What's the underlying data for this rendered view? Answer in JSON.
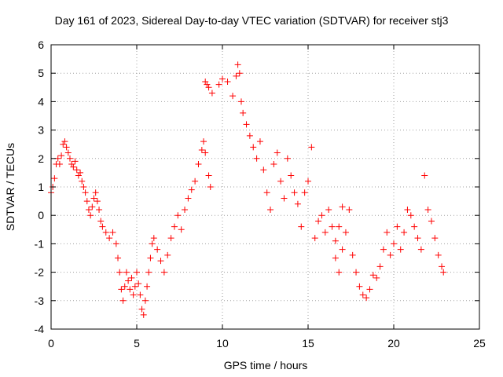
{
  "chart_data": {
    "type": "scatter",
    "title": "Day 161 of 2023, Sidereal Day-to-day VTEC variation (SDTVAR) for receiver stj3",
    "xlabel": "GPS time / hours",
    "ylabel": "SDTVAR / TECUs",
    "xlim": [
      0,
      25
    ],
    "ylim": [
      -4,
      6
    ],
    "xticks": [
      0,
      5,
      10,
      15,
      20,
      25
    ],
    "yticks": [
      -4,
      -3,
      -2,
      -1,
      0,
      1,
      2,
      3,
      4,
      5,
      6
    ],
    "xtick_labels": [
      "0",
      "5",
      "10",
      "15",
      "20",
      "25"
    ],
    "ytick_labels": [
      "-4",
      "-3",
      "-2",
      "-1",
      "0",
      "1",
      "2",
      "3",
      "4",
      "5",
      "6"
    ],
    "grid": true,
    "marker": "+",
    "colors": {
      "series": "#ff0000",
      "grid": "#a0a0a0",
      "axis": "#000000"
    },
    "series": [
      {
        "name": "SDTVAR",
        "points": [
          [
            0.0,
            0.8
          ],
          [
            0.1,
            1.0
          ],
          [
            0.2,
            1.3
          ],
          [
            0.3,
            1.8
          ],
          [
            0.4,
            2.0
          ],
          [
            0.5,
            1.8
          ],
          [
            0.6,
            2.1
          ],
          [
            0.7,
            2.5
          ],
          [
            0.8,
            2.6
          ],
          [
            0.9,
            2.4
          ],
          [
            1.0,
            2.2
          ],
          [
            1.1,
            2.0
          ],
          [
            1.2,
            1.8
          ],
          [
            1.3,
            1.7
          ],
          [
            1.4,
            1.9
          ],
          [
            1.5,
            1.6
          ],
          [
            1.6,
            1.4
          ],
          [
            1.7,
            1.5
          ],
          [
            1.8,
            1.2
          ],
          [
            1.9,
            1.0
          ],
          [
            2.0,
            0.8
          ],
          [
            2.1,
            0.5
          ],
          [
            2.2,
            0.2
          ],
          [
            2.3,
            0.0
          ],
          [
            2.4,
            0.3
          ],
          [
            2.5,
            0.6
          ],
          [
            2.6,
            0.8
          ],
          [
            2.7,
            0.5
          ],
          [
            2.8,
            0.2
          ],
          [
            2.9,
            -0.2
          ],
          [
            3.0,
            -0.4
          ],
          [
            3.2,
            -0.6
          ],
          [
            3.4,
            -0.8
          ],
          [
            3.6,
            -0.6
          ],
          [
            3.8,
            -1.0
          ],
          [
            3.9,
            -1.5
          ],
          [
            4.0,
            -2.0
          ],
          [
            4.1,
            -2.6
          ],
          [
            4.2,
            -3.0
          ],
          [
            4.3,
            -2.5
          ],
          [
            4.4,
            -2.0
          ],
          [
            4.5,
            -2.3
          ],
          [
            4.6,
            -2.6
          ],
          [
            4.7,
            -2.2
          ],
          [
            4.8,
            -2.8
          ],
          [
            4.9,
            -2.5
          ],
          [
            5.0,
            -2.0
          ],
          [
            5.1,
            -2.4
          ],
          [
            5.2,
            -2.8
          ],
          [
            5.3,
            -3.3
          ],
          [
            5.4,
            -3.5
          ],
          [
            5.5,
            -3.0
          ],
          [
            5.6,
            -2.5
          ],
          [
            5.7,
            -2.0
          ],
          [
            5.8,
            -1.5
          ],
          [
            5.9,
            -1.0
          ],
          [
            6.0,
            -0.8
          ],
          [
            6.2,
            -1.2
          ],
          [
            6.4,
            -1.6
          ],
          [
            6.6,
            -2.0
          ],
          [
            6.8,
            -1.4
          ],
          [
            7.0,
            -0.8
          ],
          [
            7.2,
            -0.4
          ],
          [
            7.4,
            0.0
          ],
          [
            7.6,
            -0.5
          ],
          [
            7.8,
            0.2
          ],
          [
            8.0,
            0.6
          ],
          [
            8.2,
            0.9
          ],
          [
            8.4,
            1.2
          ],
          [
            8.6,
            1.8
          ],
          [
            8.8,
            2.3
          ],
          [
            8.9,
            2.6
          ],
          [
            9.0,
            2.2
          ],
          [
            9.2,
            1.4
          ],
          [
            9.3,
            1.0
          ],
          [
            9.0,
            4.7
          ],
          [
            9.1,
            4.6
          ],
          [
            9.2,
            4.5
          ],
          [
            9.4,
            4.3
          ],
          [
            9.8,
            4.6
          ],
          [
            10.0,
            4.8
          ],
          [
            10.3,
            4.7
          ],
          [
            10.6,
            4.2
          ],
          [
            10.8,
            4.9
          ],
          [
            10.9,
            5.3
          ],
          [
            11.0,
            5.0
          ],
          [
            11.1,
            4.0
          ],
          [
            11.2,
            3.6
          ],
          [
            11.4,
            3.2
          ],
          [
            11.6,
            2.8
          ],
          [
            11.8,
            2.4
          ],
          [
            12.0,
            2.0
          ],
          [
            12.2,
            2.6
          ],
          [
            12.4,
            1.6
          ],
          [
            12.6,
            0.8
          ],
          [
            12.8,
            0.2
          ],
          [
            13.0,
            1.8
          ],
          [
            13.2,
            2.2
          ],
          [
            13.4,
            1.2
          ],
          [
            13.6,
            0.6
          ],
          [
            13.8,
            2.0
          ],
          [
            14.0,
            1.4
          ],
          [
            14.2,
            0.8
          ],
          [
            14.4,
            0.4
          ],
          [
            14.6,
            -0.4
          ],
          [
            14.8,
            0.8
          ],
          [
            15.0,
            1.2
          ],
          [
            15.2,
            2.4
          ],
          [
            15.4,
            -0.8
          ],
          [
            15.6,
            -0.2
          ],
          [
            15.8,
            0.0
          ],
          [
            16.0,
            -0.6
          ],
          [
            16.2,
            0.2
          ],
          [
            16.4,
            -0.4
          ],
          [
            16.6,
            -1.5
          ],
          [
            16.8,
            -2.0
          ],
          [
            17.0,
            -1.2
          ],
          [
            17.2,
            -0.6
          ],
          [
            17.4,
            0.2
          ],
          [
            17.6,
            -1.4
          ],
          [
            17.8,
            -2.0
          ],
          [
            18.0,
            -2.5
          ],
          [
            18.2,
            -2.8
          ],
          [
            18.4,
            -2.9
          ],
          [
            18.6,
            -2.6
          ],
          [
            18.8,
            -2.1
          ],
          [
            19.0,
            -2.2
          ],
          [
            19.2,
            -1.8
          ],
          [
            19.4,
            -1.2
          ],
          [
            19.6,
            -0.6
          ],
          [
            19.8,
            -1.4
          ],
          [
            20.0,
            -1.0
          ],
          [
            20.2,
            -0.4
          ],
          [
            20.4,
            -1.2
          ],
          [
            20.6,
            -0.6
          ],
          [
            20.8,
            0.2
          ],
          [
            21.0,
            0.0
          ],
          [
            21.2,
            -0.4
          ],
          [
            21.4,
            -0.8
          ],
          [
            21.6,
            -1.2
          ],
          [
            21.8,
            1.4
          ],
          [
            22.0,
            0.2
          ],
          [
            22.2,
            -0.2
          ],
          [
            22.4,
            -0.8
          ],
          [
            22.6,
            -1.4
          ],
          [
            22.8,
            -1.8
          ],
          [
            22.9,
            -2.0
          ],
          [
            16.6,
            -0.9
          ],
          [
            16.8,
            -0.4
          ],
          [
            17.0,
            0.3
          ]
        ]
      }
    ]
  }
}
